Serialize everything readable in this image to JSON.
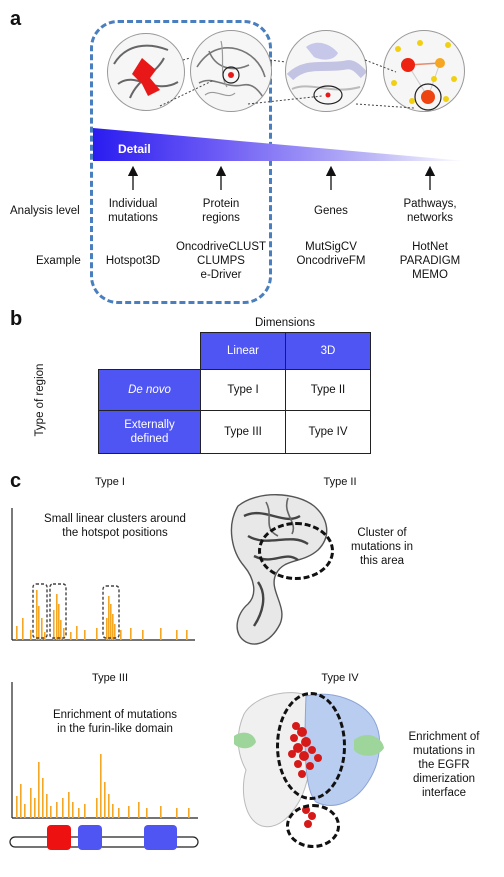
{
  "panel_a": {
    "letter": "a",
    "gradient_label": "Detail",
    "row_titles": {
      "analysis_level": "Analysis level",
      "example": "Example"
    },
    "columns": [
      {
        "level": "Individual\nmutations",
        "example": "Hotspot3D"
      },
      {
        "level": "Protein\nregions",
        "example": "OncodriveCLUST\nCLUMPS\ne-Driver"
      },
      {
        "level": "Genes",
        "example": "MutSigCV\nOncodriveFM"
      },
      {
        "level": "Pathways,\nnetworks",
        "example": "HotNet\nPARADIGM\nMEMO"
      }
    ]
  },
  "panel_b": {
    "letter": "b",
    "dimensions_label": "Dimensions",
    "type_of_region_label": "Type of region",
    "col_headers": [
      "Linear",
      "3D"
    ],
    "row_headers": [
      "De novo",
      "Externally\ndefined"
    ],
    "cells": [
      [
        "Type I",
        "Type II"
      ],
      [
        "Type III",
        "Type IV"
      ]
    ],
    "colors": {
      "header_blue": "#4f55f3"
    }
  },
  "panel_c": {
    "letter": "c",
    "type1": {
      "title": "Type I",
      "caption": "Small linear clusters around\nthe hotspot positions"
    },
    "type2": {
      "title": "Type II",
      "caption": "Cluster of\nmutations in\nthis area"
    },
    "type3": {
      "title": "Type III",
      "caption": "Enrichment of mutations\nin the furin-like domain"
    },
    "type4": {
      "title": "Type IV",
      "caption": "Enrichment of\nmutations in\nthe EGFR\ndimerization\ninterface"
    },
    "colors": {
      "bar_orange": "#f5a623",
      "domain_red": "#ee1111",
      "domain_blue": "#4f55f3"
    }
  }
}
